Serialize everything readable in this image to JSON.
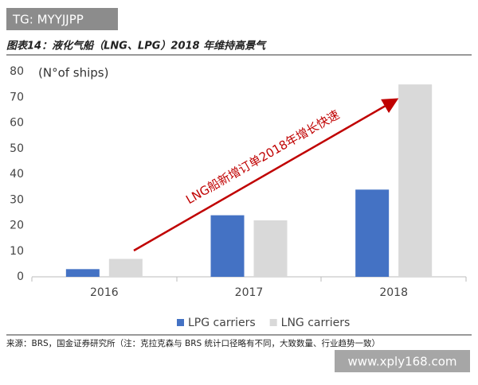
{
  "watermark_top": "TG: MYYJJPP",
  "watermark_bottom": "www.xply168.com",
  "chart_data": {
    "type": "bar",
    "title": "图表14：液化气船（LNG、LPG）2018 年维持高景气",
    "y_label": "(N°of ships)",
    "annotation": "LNG船新增订单2018年增长快速",
    "source": "来源：BRS，国金证券研究所（注：克拉克森与 BRS 统计口径略有不同，大致数量、行业趋势一致）",
    "categories": [
      "2016",
      "2017",
      "2018"
    ],
    "series": [
      {
        "name": "LPG carriers",
        "color": "#4472c4",
        "values": [
          3,
          24,
          34
        ]
      },
      {
        "name": "LNG carriers",
        "color": "#d9d9d9",
        "values": [
          7,
          22,
          75
        ]
      }
    ],
    "ylim": [
      0,
      80
    ],
    "yticks": [
      0,
      10,
      20,
      30,
      40,
      50,
      60,
      70,
      80
    ],
    "legend": "bottom",
    "grid": false
  }
}
